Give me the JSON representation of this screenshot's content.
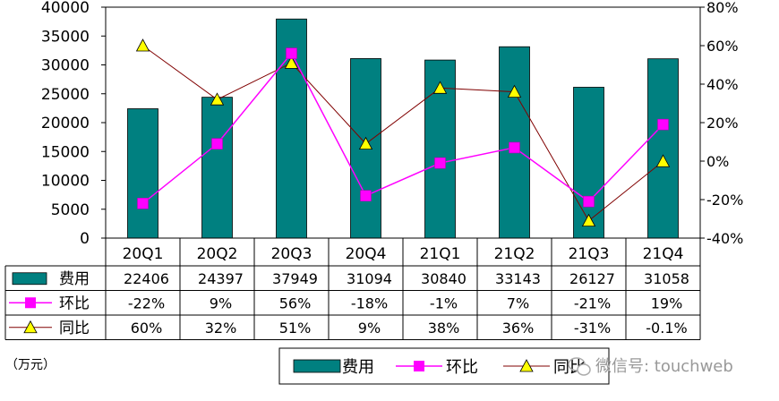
{
  "chart_data": {
    "type": "bar",
    "categories": [
      "20Q1",
      "20Q2",
      "20Q3",
      "20Q4",
      "21Q1",
      "21Q2",
      "21Q3",
      "21Q4"
    ],
    "series": [
      {
        "name": "费用",
        "kind": "bar",
        "axis": "left",
        "values": [
          22406,
          24397,
          37949,
          31094,
          30840,
          33143,
          26127,
          31058
        ],
        "color": "#008080"
      },
      {
        "name": "环比",
        "kind": "line",
        "axis": "right",
        "values": [
          -22,
          9,
          56,
          -18,
          -1,
          7,
          -21,
          19
        ],
        "color": "#FF00FF"
      },
      {
        "name": "同比",
        "kind": "line",
        "axis": "right",
        "values": [
          60,
          32,
          51,
          9,
          38,
          36,
          -31,
          -0.1
        ],
        "color": "#800000",
        "marker_color": "#FFFF00"
      }
    ],
    "table_rows": [
      {
        "label": "费用",
        "cells": [
          "22406",
          "24397",
          "37949",
          "31094",
          "30840",
          "33143",
          "26127",
          "31058"
        ]
      },
      {
        "label": "环比",
        "cells": [
          "-22%",
          "9%",
          "56%",
          "-18%",
          "-1%",
          "7%",
          "-21%",
          "19%"
        ]
      },
      {
        "label": "同比",
        "cells": [
          "60%",
          "32%",
          "51%",
          "9%",
          "38%",
          "36%",
          "-31%",
          "-0.1%"
        ]
      }
    ],
    "y_left": {
      "lim": [
        0,
        40000
      ],
      "ticks": [
        "0",
        "5000",
        "10000",
        "15000",
        "20000",
        "25000",
        "30000",
        "35000",
        "40000"
      ]
    },
    "y_right": {
      "lim": [
        -40,
        80
      ],
      "ticks": [
        "-40%",
        "-20%",
        "0%",
        "20%",
        "40%",
        "60%",
        "80%"
      ]
    },
    "unit_label": "（万元）",
    "legend": {
      "position": "bottom-right",
      "items": [
        "费用",
        "环比",
        "同比"
      ]
    }
  },
  "watermark": "微信号: touchweb"
}
